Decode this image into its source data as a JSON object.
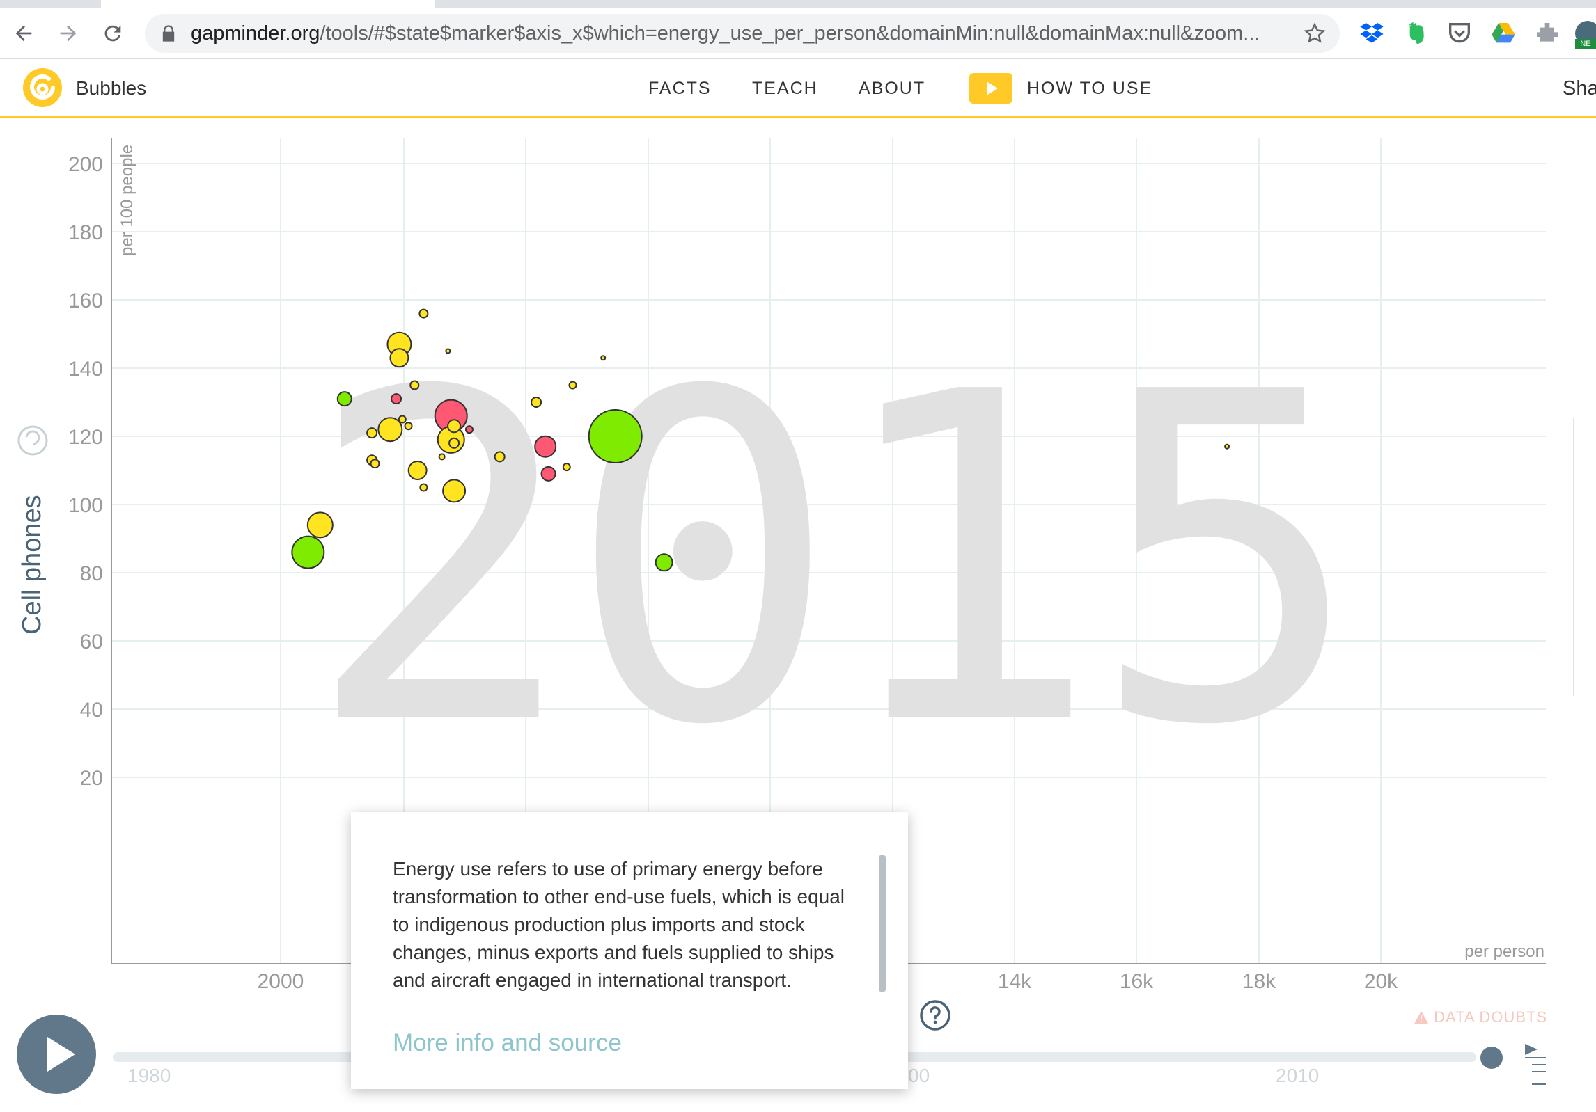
{
  "browser": {
    "url_host": "gapminder.org",
    "url_path": "/tools/#$state$marker$axis_x$which=energy_use_per_person&domainMin:null&domainMax:null&zoom..."
  },
  "header": {
    "title": "Bubbles",
    "nav": [
      "FACTS",
      "TEACH",
      "ABOUT"
    ],
    "how_to_use": "HOW TO USE",
    "share": "Sha",
    "accent_color": "#ffc928"
  },
  "chart_data": {
    "type": "scatter",
    "year_watermark": "2015",
    "ylabel": "Cell phones",
    "yunit": "per 100 people",
    "xunit": "per person",
    "y_ticks": [
      "200",
      "180",
      "160",
      "140",
      "120",
      "100",
      "80",
      "60",
      "40",
      "20"
    ],
    "x_ticks": [
      "2000",
      "14k",
      "16k",
      "18k",
      "20k"
    ],
    "ylim": [
      0,
      230
    ],
    "grid": true,
    "points": [
      {
        "x": 3950,
        "y": 147,
        "r": 17,
        "color": "#ffe41f"
      },
      {
        "x": 3950,
        "y": 143,
        "r": 13,
        "color": "#ffe41f"
      },
      {
        "x": 4350,
        "y": 156,
        "r": 6,
        "color": "#ffe41f"
      },
      {
        "x": 4750,
        "y": 145,
        "r": 3,
        "color": "#ffe41f"
      },
      {
        "x": 3050,
        "y": 131,
        "r": 10,
        "color": "#7feb00"
      },
      {
        "x": 3900,
        "y": 131,
        "r": 7,
        "color": "#ff5872"
      },
      {
        "x": 4200,
        "y": 135,
        "r": 6,
        "color": "#ffe41f"
      },
      {
        "x": 3800,
        "y": 122,
        "r": 17,
        "color": "#ffe41f"
      },
      {
        "x": 3500,
        "y": 121,
        "r": 7,
        "color": "#ffe41f"
      },
      {
        "x": 4000,
        "y": 125,
        "r": 5,
        "color": "#ffe41f"
      },
      {
        "x": 4100,
        "y": 123,
        "r": 5,
        "color": "#ffe41f"
      },
      {
        "x": 4800,
        "y": 126,
        "r": 23,
        "color": "#ff5872"
      },
      {
        "x": 4800,
        "y": 119,
        "r": 19,
        "color": "#ffe41f"
      },
      {
        "x": 4850,
        "y": 118,
        "r": 7,
        "color": "#ffe41f"
      },
      {
        "x": 4850,
        "y": 123,
        "r": 9,
        "color": "#ffe41f"
      },
      {
        "x": 5100,
        "y": 122,
        "r": 5,
        "color": "#ff5872"
      },
      {
        "x": 3500,
        "y": 113,
        "r": 7,
        "color": "#ffe41f"
      },
      {
        "x": 3550,
        "y": 112,
        "r": 6,
        "color": "#ffe41f"
      },
      {
        "x": 4250,
        "y": 110,
        "r": 13,
        "color": "#ffe41f"
      },
      {
        "x": 4650,
        "y": 114,
        "r": 4,
        "color": "#ffe41f"
      },
      {
        "x": 4350,
        "y": 105,
        "r": 5,
        "color": "#ffe41f"
      },
      {
        "x": 4850,
        "y": 104,
        "r": 16,
        "color": "#ffe41f"
      },
      {
        "x": 5600,
        "y": 114,
        "r": 7,
        "color": "#ffe41f"
      },
      {
        "x": 6200,
        "y": 130,
        "r": 7,
        "color": "#ffe41f"
      },
      {
        "x": 6350,
        "y": 117,
        "r": 15,
        "color": "#ff5872"
      },
      {
        "x": 6400,
        "y": 109,
        "r": 10,
        "color": "#ff5872"
      },
      {
        "x": 6700,
        "y": 111,
        "r": 5,
        "color": "#ffe41f"
      },
      {
        "x": 6800,
        "y": 135,
        "r": 5,
        "color": "#ffe41f"
      },
      {
        "x": 7300,
        "y": 143,
        "r": 3,
        "color": "#ffe41f"
      },
      {
        "x": 7500,
        "y": 120,
        "r": 38,
        "color": "#7feb00"
      },
      {
        "x": 8300,
        "y": 83,
        "r": 12,
        "color": "#7feb00"
      },
      {
        "x": 2650,
        "y": 94,
        "r": 18,
        "color": "#ffe41f"
      },
      {
        "x": 2450,
        "y": 86,
        "r": 23,
        "color": "#7feb00"
      },
      {
        "x": 17550,
        "y": 117,
        "r": 3,
        "color": "#ffe41f"
      }
    ]
  },
  "popup": {
    "text": "Energy use refers to use of primary energy before transformation to other end-use fuels, which is equal to indigenous production plus imports and stock changes, minus exports and fuels supplied to ships and aircraft engaged in international transport.",
    "link": "More info and source"
  },
  "timeline": {
    "start_year": "1980",
    "partial_year": "00",
    "end_label_year": "2010",
    "data_doubts": "DATA DOUBTS"
  }
}
